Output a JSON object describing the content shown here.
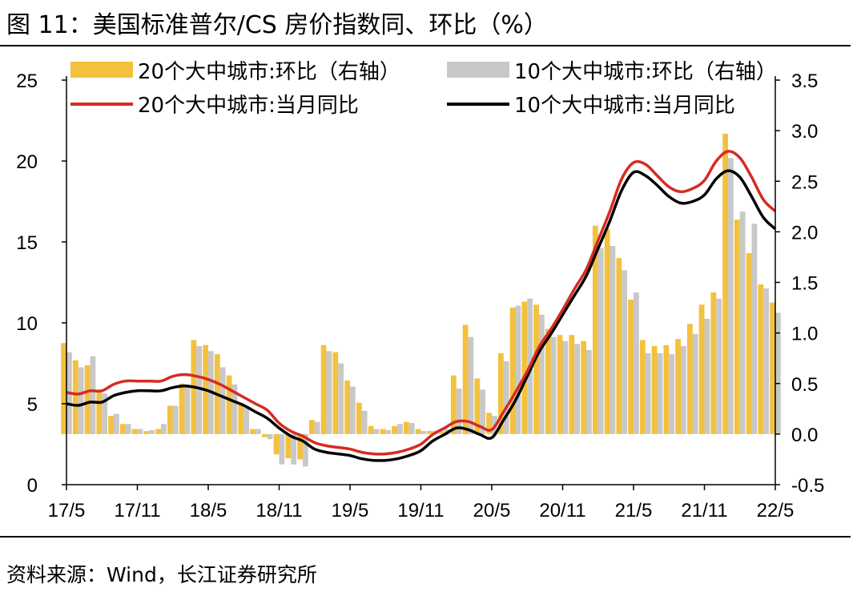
{
  "header": {
    "title": "图 11：美国标准普尔/CS 房价指数同、环比（%）"
  },
  "footer": {
    "source": "资料来源：Wind，长江证券研究所"
  },
  "colors": {
    "bar20": "#f4c13e",
    "bar10": "#c8c8c8",
    "line20": "#d62b22",
    "line10": "#000000"
  },
  "chart_data": {
    "type": "bar+line",
    "legend": [
      {
        "label": "20个大中城市:环比（右轴）",
        "kind": "bar",
        "series": "bar20"
      },
      {
        "label": "10个大中城市:环比（右轴）",
        "kind": "bar",
        "series": "bar10"
      },
      {
        "label": "20个大中城市:当月同比",
        "kind": "line",
        "series": "line20"
      },
      {
        "label": "10个大中城市:当月同比",
        "kind": "line",
        "series": "line10"
      }
    ],
    "left_axis": {
      "min": 0,
      "max": 25,
      "ticks": [
        "0",
        "5",
        "10",
        "15",
        "20",
        "25"
      ],
      "tick_values": [
        0,
        5,
        10,
        15,
        20,
        25
      ]
    },
    "right_axis": {
      "min": -0.5,
      "max": 3.5,
      "ticks": [
        "-0.5",
        "0.0",
        "0.5",
        "1.0",
        "1.5",
        "2.0",
        "2.5",
        "3.0",
        "3.5"
      ],
      "tick_values": [
        -0.5,
        0,
        0.5,
        1,
        1.5,
        2,
        2.5,
        3,
        3.5
      ]
    },
    "x_tick_labels": [
      "17/5",
      "17/11",
      "18/5",
      "18/11",
      "19/5",
      "19/11",
      "20/5",
      "20/11",
      "21/5",
      "21/11",
      "22/5"
    ],
    "x_tick_index": [
      0,
      6,
      12,
      18,
      24,
      30,
      36,
      42,
      48,
      54,
      60
    ],
    "months": [
      "17/5",
      "17/6",
      "17/7",
      "17/8",
      "17/9",
      "17/10",
      "17/11",
      "17/12",
      "18/1",
      "18/2",
      "18/3",
      "18/4",
      "18/5",
      "18/6",
      "18/7",
      "18/8",
      "18/9",
      "18/10",
      "18/11",
      "18/12",
      "19/1",
      "19/2",
      "19/3",
      "19/4",
      "19/5",
      "19/6",
      "19/7",
      "19/8",
      "19/9",
      "19/10",
      "19/11",
      "19/12",
      "20/1",
      "20/2",
      "20/3",
      "20/4",
      "20/5",
      "20/6",
      "20/7",
      "20/8",
      "20/9",
      "20/10",
      "20/11",
      "20/12",
      "21/1",
      "21/2",
      "21/3",
      "21/4",
      "21/5",
      "21/6",
      "21/7",
      "21/8",
      "21/9",
      "21/10",
      "21/11",
      "21/12",
      "22/1",
      "22/2",
      "22/3",
      "22/4",
      "22/5"
    ],
    "series": [
      {
        "name": "20个大中城市:环比（右轴）",
        "axis": "right",
        "kind": "bar",
        "values": [
          0.9,
          0.73,
          0.68,
          0.42,
          0.18,
          0.1,
          0.05,
          0.03,
          0.05,
          0.28,
          0.5,
          0.93,
          0.88,
          0.79,
          0.58,
          0.31,
          0.05,
          -0.03,
          -0.2,
          -0.24,
          -0.25,
          0.14,
          0.88,
          0.81,
          0.53,
          0.31,
          0.08,
          0.05,
          0.08,
          0.12,
          0.05,
          0.03,
          0.03,
          0.58,
          1.08,
          0.55,
          0.21,
          0.8,
          1.25,
          1.31,
          1.28,
          1.04,
          0.98,
          0.98,
          0.92,
          2.06,
          2.03,
          1.74,
          1.33,
          0.93,
          0.87,
          0.88,
          0.94,
          1.09,
          1.28,
          1.4,
          2.97,
          2.12,
          1.79,
          1.48,
          1.3
        ]
      },
      {
        "name": "10个大中城市:环比（右轴）",
        "axis": "right",
        "kind": "bar",
        "values": [
          0.81,
          0.66,
          0.77,
          0.4,
          0.2,
          0.1,
          0.05,
          0.04,
          0.1,
          0.28,
          0.48,
          0.87,
          0.82,
          0.66,
          0.49,
          0.26,
          0.05,
          -0.05,
          -0.3,
          -0.3,
          -0.32,
          0.12,
          0.82,
          0.7,
          0.47,
          0.23,
          0.05,
          0.04,
          0.1,
          0.11,
          0.03,
          0.03,
          0.05,
          0.45,
          0.96,
          0.44,
          0.18,
          0.72,
          1.27,
          1.34,
          1.18,
          0.96,
          0.92,
          0.89,
          0.83,
          1.84,
          1.86,
          1.62,
          1.4,
          0.8,
          0.8,
          0.79,
          0.87,
          0.99,
          1.14,
          1.34,
          2.73,
          2.2,
          2.08,
          1.44,
          1.2
        ]
      },
      {
        "name": "20个大中城市:当月同比",
        "axis": "left",
        "kind": "line",
        "values": [
          5.7,
          5.6,
          5.8,
          5.8,
          6.2,
          6.4,
          6.4,
          6.4,
          6.4,
          6.7,
          6.8,
          6.7,
          6.5,
          6.2,
          5.8,
          5.4,
          5.0,
          4.6,
          3.8,
          3.3,
          3.0,
          2.6,
          2.4,
          2.3,
          2.2,
          2.0,
          1.9,
          1.9,
          2.0,
          2.2,
          2.5,
          3.1,
          3.5,
          3.9,
          3.9,
          3.6,
          3.4,
          4.5,
          5.7,
          7.0,
          8.5,
          9.6,
          10.8,
          12.1,
          13.3,
          15.1,
          16.9,
          18.9,
          19.9,
          19.8,
          19.1,
          18.4,
          18.1,
          18.3,
          18.8,
          20.0,
          20.6,
          20.2,
          19.0,
          17.6,
          16.9
        ]
      },
      {
        "name": "10个大中城市:当月同比",
        "axis": "left",
        "kind": "line",
        "values": [
          5.0,
          4.9,
          5.1,
          5.1,
          5.5,
          5.7,
          5.8,
          5.8,
          5.8,
          6.0,
          6.1,
          6.0,
          5.8,
          5.5,
          5.2,
          4.9,
          4.5,
          4.1,
          3.5,
          3.0,
          2.7,
          2.2,
          2.0,
          1.9,
          1.8,
          1.6,
          1.5,
          1.5,
          1.6,
          1.8,
          2.1,
          2.7,
          3.1,
          3.5,
          3.4,
          3.1,
          2.9,
          4.0,
          5.2,
          6.7,
          8.2,
          9.3,
          10.5,
          11.7,
          12.9,
          14.6,
          16.3,
          18.2,
          19.3,
          19.1,
          18.5,
          17.8,
          17.4,
          17.5,
          17.9,
          18.9,
          19.4,
          19.0,
          17.8,
          16.5,
          15.8
        ]
      }
    ]
  }
}
